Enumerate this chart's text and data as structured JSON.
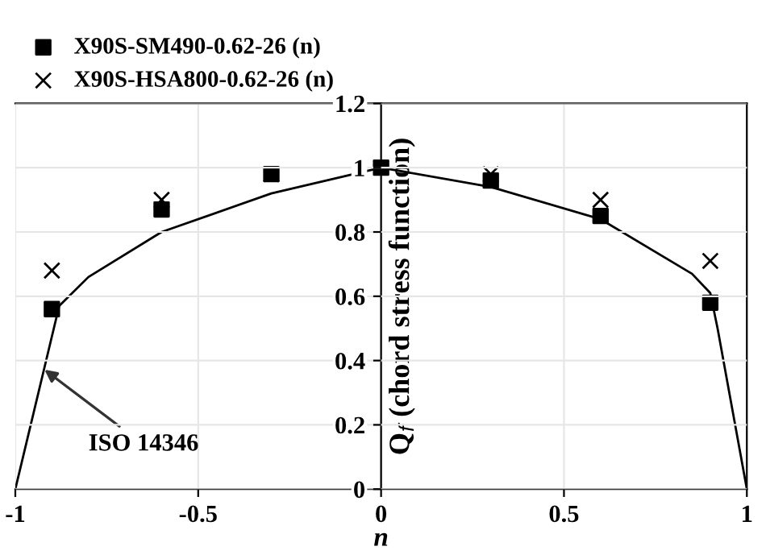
{
  "chart_data": {
    "type": "scatter",
    "xlabel": "n",
    "ylabel": "Q$_{f}$ (chord stress function)",
    "xlim": [
      -1,
      1
    ],
    "ylim": [
      0,
      1.2
    ],
    "xticks": [
      -1,
      -0.5,
      0,
      0.5,
      1
    ],
    "yticks": [
      0,
      0.2,
      0.4,
      0.6,
      0.8,
      1,
      1.2
    ],
    "grid": true,
    "legend": "top left",
    "series": [
      {
        "name": "X90S-SM490-0.62-26 (n)",
        "color": "#000000",
        "marker": "square",
        "x": [
          -0.9,
          -0.6,
          -0.3,
          0,
          0.3,
          0.6,
          0.9
        ],
        "values": [
          0.56,
          0.87,
          0.98,
          1.0,
          0.96,
          0.85,
          0.58
        ]
      },
      {
        "name": "X90S-HSA800-0.62-26 (n)",
        "color": "#000000",
        "marker": "cross",
        "x": [
          -0.9,
          -0.6,
          -0.3,
          0.3,
          0.6,
          0.9
        ],
        "values": [
          0.68,
          0.9,
          0.98,
          0.98,
          0.9,
          0.71
        ]
      },
      {
        "type": "line",
        "color": "#000000",
        "marker": "none",
        "x": [
          -1,
          -0.88,
          -0.8,
          -0.6,
          -0.3,
          0,
          0.3,
          0.6,
          0.85,
          0.9,
          0.92,
          1
        ],
        "values": [
          0,
          0.57,
          0.66,
          0.8,
          0.92,
          1.0,
          0.94,
          0.84,
          0.67,
          0.61,
          0.5,
          0
        ]
      }
    ],
    "annotations": [
      {
        "text": "ISO 14346",
        "x": -0.93,
        "y": 0.38
      }
    ]
  }
}
